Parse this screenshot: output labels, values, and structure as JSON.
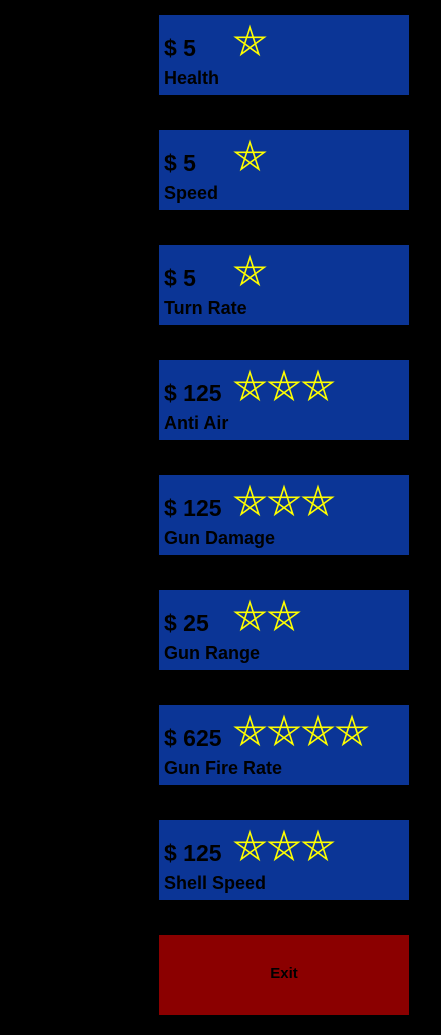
{
  "colors": {
    "background": "#000000",
    "upgrade_panel": "#0b3596",
    "exit_panel": "#8b0000",
    "star_stroke": "#ffff00",
    "text": "#000000"
  },
  "upgrades": [
    {
      "price": "$ 5",
      "name": "Health",
      "stars": 1
    },
    {
      "price": "$ 5",
      "name": "Speed",
      "stars": 1
    },
    {
      "price": "$ 5",
      "name": "Turn Rate",
      "stars": 1
    },
    {
      "price": "$ 125",
      "name": "Anti Air",
      "stars": 3
    },
    {
      "price": "$ 125",
      "name": "Gun Damage",
      "stars": 3
    },
    {
      "price": "$ 25",
      "name": "Gun Range",
      "stars": 2
    },
    {
      "price": "$ 625",
      "name": "Gun Fire Rate",
      "stars": 4
    },
    {
      "price": "$ 125",
      "name": "Shell Speed",
      "stars": 3
    }
  ],
  "exit": {
    "label": "Exit"
  },
  "icons": {
    "star": "star-outline-icon"
  }
}
